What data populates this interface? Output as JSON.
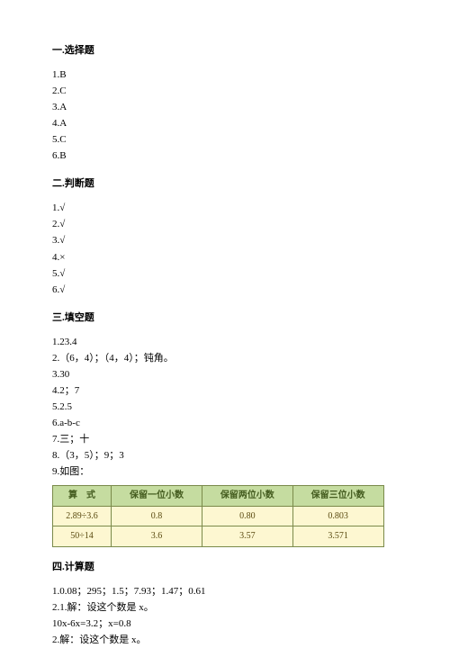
{
  "sections": {
    "s1": {
      "title": "一.选择题",
      "items": [
        "1.B",
        "2.C",
        "3.A",
        "4.A",
        "5.C",
        "6.B"
      ]
    },
    "s2": {
      "title": "二.判断题",
      "items": [
        "1.√",
        "2.√",
        "3.√",
        "4.×",
        "5.√",
        "6.√"
      ]
    },
    "s3": {
      "title": "三.填空题",
      "items": [
        "1.23.4",
        "2.（6，4）；（4，4）；钝角。",
        "3.30",
        "4.2；7",
        "5.2.5",
        "6.a-b-c",
        "7.三；十",
        "8.（3，5）；9；3",
        "9.如图："
      ]
    },
    "s4": {
      "title": "四.计算题",
      "line1": "1.0.08；295；1.5；7.93；1.47；0.61",
      "line2": "2.1.解：设这个数是 x。",
      "line3": "10x-6x=3.2；x=0.8",
      "line4": "2.解：设这个数是 x。"
    }
  },
  "table": {
    "headers": [
      "算　式",
      "保留一位小数",
      "保留两位小数",
      "保留三位小数"
    ],
    "rows": [
      [
        "2.89÷3.6",
        "0.8",
        "0.80",
        "0.803"
      ],
      [
        "50÷14",
        "3.6",
        "3.57",
        "3.571"
      ]
    ],
    "col_widths": [
      "25%",
      "25%",
      "25%",
      "25%"
    ],
    "header_bg": "#c5dca0",
    "cell_bg": "#fdf7d1",
    "border_color": "#7a8a4a"
  }
}
